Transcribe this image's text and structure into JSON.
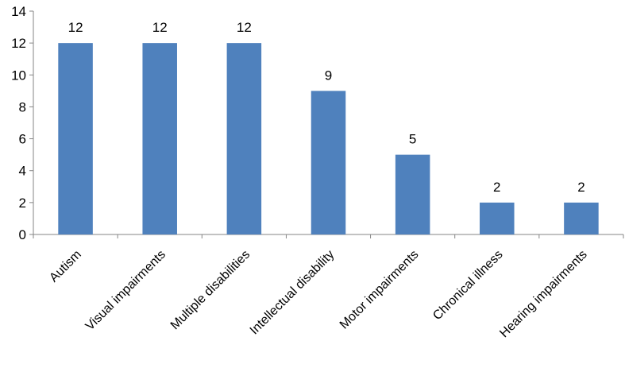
{
  "chart_data": {
    "type": "bar",
    "title": "",
    "xlabel": "",
    "ylabel": "",
    "categories": [
      "Autism",
      "Visual impairments",
      "Multiple disabilities",
      "Intellectual disability",
      "Motor impairments",
      "Chronical illness",
      "Hearing impairments"
    ],
    "values": [
      12,
      12,
      12,
      9,
      5,
      2,
      2
    ],
    "ylim": [
      0,
      14
    ],
    "yticks": [
      0,
      2,
      4,
      6,
      8,
      10,
      12,
      14
    ],
    "data_labels": true,
    "grid": false,
    "legend": "none",
    "bar_color": "#4F81BD"
  }
}
